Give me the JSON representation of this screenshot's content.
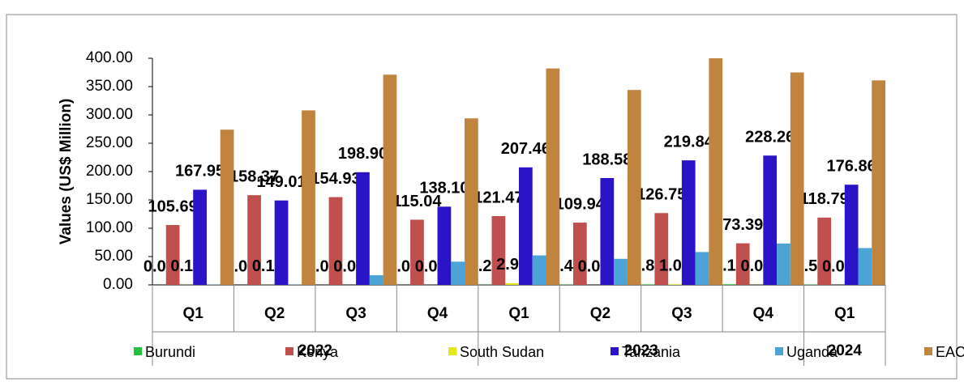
{
  "chart_data": {
    "type": "bar",
    "y_label": "Values (US$ Million)",
    "groups": [
      {
        "name": "2022",
        "span": [
          0,
          3
        ]
      },
      {
        "name": "2023",
        "span": [
          4,
          7
        ]
      },
      {
        "name": "2024",
        "span": [
          8,
          8
        ]
      }
    ],
    "categories": [
      "Q1",
      "Q2",
      "Q3",
      "Q4",
      "Q1",
      "Q2",
      "Q3",
      "Q4",
      "Q1"
    ],
    "series": [
      {
        "name": "Burundi",
        "color": "#22c33a",
        "values": [
          0,
          0,
          0,
          0,
          0.22,
          0.45,
          0.87,
          1.12,
          0.54
        ],
        "value_labels": [
          "0.00",
          "0.00",
          "0.00",
          "0.00",
          "0.22",
          "0.45",
          "0.87",
          "1.12",
          "0.54"
        ]
      },
      {
        "name": "Kenya",
        "color": "#c0504d",
        "values": [
          105.69,
          158.37,
          154.93,
          115.04,
          121.47,
          109.94,
          126.75,
          73.39,
          118.79
        ],
        "value_labels": [
          "105.69",
          "158.37",
          "154.93",
          "115.04",
          "121.47",
          "109.94",
          "126.75",
          "73.39",
          "118.79"
        ]
      },
      {
        "name": "South Sudan",
        "color": "#e6e61e",
        "values": [
          0.14,
          0.13,
          0,
          0.01,
          2.98,
          0,
          1.01,
          0.09,
          0
        ],
        "value_labels": [
          "0.14",
          "0.13",
          "0.00",
          "0.01",
          "2.98",
          "0.00",
          "1.01",
          "0.09",
          "0.00"
        ]
      },
      {
        "name": "Tanzania",
        "color": "#2b14c8",
        "values": [
          167.95,
          149.01,
          198.9,
          138.1,
          207.46,
          188.58,
          219.84,
          228.26,
          176.86
        ],
        "value_labels": [
          "167.95",
          "149.01",
          "198.90",
          "138.10",
          "207.46",
          "188.58",
          "219.84",
          "228.26",
          "176.86"
        ]
      },
      {
        "name": "Uganda",
        "color": "#4ba3d6",
        "values": [
          0.5,
          0.5,
          17,
          41,
          52,
          46,
          58,
          73,
          65
        ]
      },
      {
        "name": "EAC",
        "color": "#c0843f",
        "values": [
          274,
          308,
          371,
          294,
          382,
          344,
          400,
          375,
          361
        ]
      }
    ],
    "ylim": [
      0,
      400
    ],
    "yticks": [
      {
        "value": 0,
        "label": "0.00"
      },
      {
        "value": 50,
        "label": "50.00"
      },
      {
        "value": 100,
        "label": "100.00"
      },
      {
        "value": 150,
        "label": "150.00"
      },
      {
        "value": 200,
        "label": "200.00"
      },
      {
        "value": 250,
        "label": "250.00"
      },
      {
        "value": 300,
        "label": "300.00"
      },
      {
        "value": 350,
        "label": "350.00"
      },
      {
        "value": 400,
        "label": "400.00"
      }
    ],
    "legend": "bottom"
  }
}
